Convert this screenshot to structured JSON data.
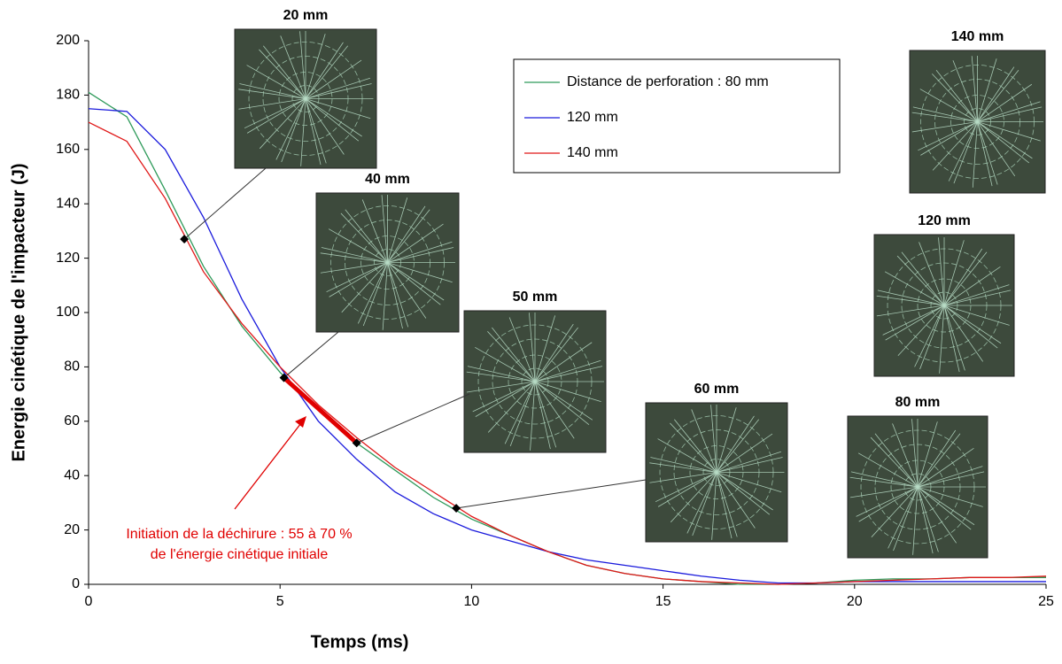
{
  "chart_data": {
    "type": "line",
    "x_label": "Temps (ms)",
    "y_label": "Energie cinétique de l'impacteur (J)",
    "x": [
      0,
      1,
      2,
      3,
      4,
      5,
      6,
      7,
      8,
      9,
      10,
      11,
      12,
      13,
      14,
      15,
      16,
      17,
      18,
      19,
      20,
      21,
      22,
      23,
      24,
      25
    ],
    "series": [
      {
        "name": "Distance de perforation : 80 mm",
        "color": "#2e9a5a",
        "values": [
          181,
          172,
          145,
          117,
          95,
          78,
          64,
          52,
          42,
          32,
          24,
          18,
          12,
          7,
          4,
          2,
          1,
          0,
          0,
          0.5,
          1.5,
          2,
          2,
          2.5,
          2.5,
          2.5
        ]
      },
      {
        "name": "120 mm",
        "color": "#1a1adc",
        "values": [
          175,
          174,
          160,
          135,
          105,
          80,
          60,
          46,
          34,
          26,
          20,
          16,
          12,
          9,
          7,
          5,
          3,
          1.5,
          0.5,
          0.5,
          1,
          1,
          1,
          1,
          1,
          1
        ]
      },
      {
        "name": "140 mm",
        "color": "#e01818",
        "values": [
          170,
          163,
          142,
          115,
          96,
          80,
          66,
          54,
          43,
          34,
          25,
          18,
          12,
          7,
          4,
          2,
          1,
          0.5,
          0,
          0.5,
          1,
          1.5,
          2,
          2.5,
          2.5,
          3
        ]
      }
    ],
    "xlim": [
      0,
      25
    ],
    "ylim": [
      0,
      200
    ],
    "xticks": [
      0,
      5,
      10,
      15,
      20,
      25
    ],
    "yticks": [
      0,
      20,
      40,
      60,
      80,
      100,
      120,
      140,
      160,
      180,
      200
    ],
    "markers": {
      "x": [
        2.5,
        5.1,
        7,
        9.6
      ],
      "y": [
        127,
        76,
        52,
        28
      ]
    },
    "annotation": [
      "Initiation de la déchirure : 55 à 70 %",
      "de l'énergie cinétique initiale"
    ],
    "photos": [
      "20 mm",
      "40 mm",
      "50 mm",
      "60 mm",
      "140 mm",
      "120 mm",
      "80 mm"
    ]
  }
}
